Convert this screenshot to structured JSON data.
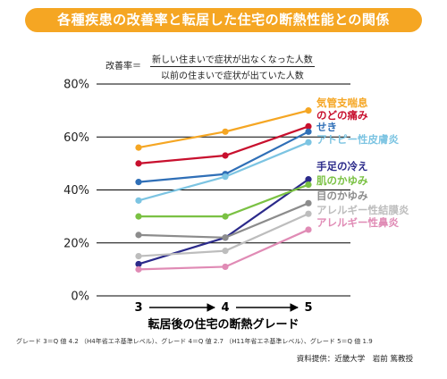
{
  "title": "各種疾患の改善率と転居した住宅の断熱性能との関係",
  "formula": {
    "lhs": "改善率＝",
    "numerator": "新しい住まいで症状が出なくなった人数",
    "denominator": "以前の住まいで症状が出ていた人数"
  },
  "footnote": "グレード 3＝Q 値 4.2 （H4年省エネ基準レベル）、グレード 4＝Q 値 2.7 （H11年省エネ基準レベル）、グレード 5＝Q 値 1.9",
  "credit": "資料提供：近畿大学　岩前 篤教授",
  "chart_data": {
    "type": "line",
    "xlabel": "転居後の住宅の断熱グレード",
    "x": [
      "3",
      "4",
      "5"
    ],
    "ylim": [
      0,
      80
    ],
    "yticks": [
      0,
      20,
      40,
      60,
      80
    ],
    "ytick_labels": [
      "0%",
      "20%",
      "40%",
      "60%",
      "80%"
    ],
    "grid": true,
    "legend_position": "right (labels at line ends)",
    "series": [
      {
        "name": "気管支喘息",
        "color": "#f5a623",
        "values": [
          56,
          62,
          70
        ]
      },
      {
        "name": "のどの痛み",
        "color": "#c8102e",
        "values": [
          50,
          53,
          64
        ]
      },
      {
        "name": "せき",
        "color": "#2f6fb7",
        "values": [
          43,
          46,
          62
        ]
      },
      {
        "name": "アトピー性皮膚炎",
        "color": "#7cc4e2",
        "values": [
          36,
          45,
          58
        ]
      },
      {
        "name": "手足の冷え",
        "color": "#2b2a8a",
        "values": [
          12,
          22,
          44
        ]
      },
      {
        "name": "肌のかゆみ",
        "color": "#7ac143",
        "values": [
          30,
          30,
          42
        ]
      },
      {
        "name": "目のかゆみ",
        "color": "#8c8c8c",
        "values": [
          23,
          22,
          35
        ]
      },
      {
        "name": "アレルギー性結膜炎",
        "color": "#bdbdbd",
        "values": [
          15,
          17,
          31
        ]
      },
      {
        "name": "アレルギー性鼻炎",
        "color": "#e08bb5",
        "values": [
          10,
          11,
          25
        ]
      }
    ]
  }
}
